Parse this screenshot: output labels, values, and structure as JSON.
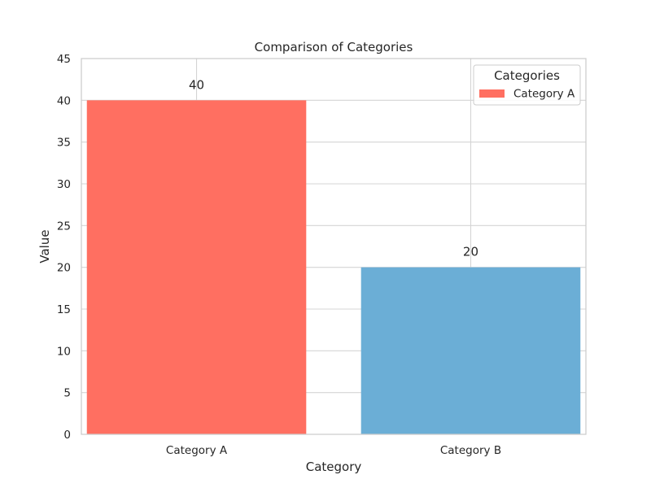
{
  "chart_data": {
    "type": "bar",
    "title": "Comparison of Categories",
    "xlabel": "Category",
    "ylabel": "Value",
    "categories": [
      "Category A",
      "Category B"
    ],
    "values": [
      40,
      20
    ],
    "data_labels": [
      "40",
      "20"
    ],
    "colors": [
      "#ff6f61",
      "#6baed6"
    ],
    "ylim": [
      0,
      45
    ],
    "yticks": [
      0,
      5,
      10,
      15,
      20,
      25,
      30,
      35,
      40,
      45
    ],
    "grid": true,
    "legend": {
      "title": "Categories",
      "placement": "top-right",
      "entries": [
        {
          "label": "Category A",
          "color": "#ff6f61"
        }
      ]
    }
  }
}
